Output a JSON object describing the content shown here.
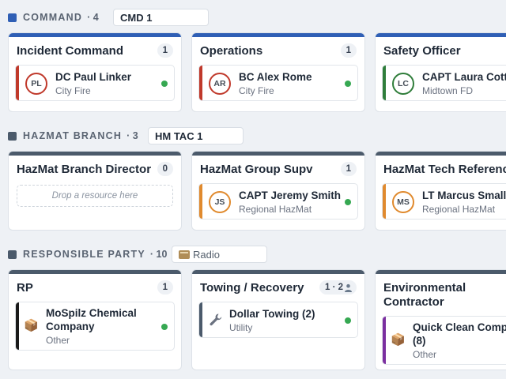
{
  "colors": {
    "command": "#2f5fb5",
    "hazmat": "#4b5a6b",
    "rp": "#4b5a6b",
    "stripe_red": "#c0392b",
    "stripe_green": "#2f7d3a",
    "stripe_orange": "#e08a2e",
    "stripe_black": "#1a1a1a",
    "stripe_slate": "#4b5a6b",
    "stripe_purple": "#7b2fa0",
    "online": "#36a852"
  },
  "sections": {
    "command": {
      "title": "COMMAND",
      "count": "· 4",
      "channel": "CMD 1",
      "cards": [
        {
          "title": "Incident Command",
          "badge": "1",
          "resource": {
            "initials": "PL",
            "name": "DC Paul Linker",
            "agency": "City Fire",
            "status": "online"
          }
        },
        {
          "title": "Operations",
          "badge": "1",
          "resource": {
            "initials": "AR",
            "name": "BC Alex Rome",
            "agency": "City Fire",
            "status": "online"
          }
        },
        {
          "title": "Safety Officer",
          "badge": "",
          "resource": {
            "initials": "LC",
            "name": "CAPT Laura Cotte",
            "agency": "Midtown FD",
            "status": ""
          }
        }
      ]
    },
    "hazmat": {
      "title": "HAZMAT BRANCH",
      "count": "· 3",
      "channel": "HM TAC 1",
      "cards": [
        {
          "title": "HazMat Branch Director",
          "badge": "0",
          "dropzone": "Drop a resource here"
        },
        {
          "title": "HazMat Group Supv",
          "badge": "1",
          "resource": {
            "initials": "JS",
            "name": "CAPT Jeremy Smith",
            "agency": "Regional HazMat",
            "status": "online"
          }
        },
        {
          "title": "HazMat Tech Reference",
          "badge": "",
          "resource": {
            "initials": "MS",
            "name": "LT Marcus Small",
            "agency": "Regional HazMat",
            "status": ""
          }
        }
      ]
    },
    "rp": {
      "title": "RESPONSIBLE PARTY",
      "count": "· 10",
      "channel": "Radio",
      "cards": [
        {
          "title": "RP",
          "badge": "1",
          "resource": {
            "icon": "package-icon",
            "name_line1": "MoSpilz Chemical",
            "name_line2": "Company",
            "agency": "Other",
            "status": "online"
          }
        },
        {
          "title": "Towing / Recovery",
          "badge": "1 · 2",
          "resource": {
            "icon": "wrench-icon",
            "name": "Dollar Towing (2)",
            "agency": "Utility",
            "status": "online"
          }
        },
        {
          "title_line1": "Environmental",
          "title_line2": "Contractor",
          "badge": "",
          "resource": {
            "icon": "package-icon",
            "name_line1": "Quick Clean Compa",
            "name_line2": "(8)",
            "agency": "Other",
            "status": ""
          }
        }
      ]
    }
  }
}
